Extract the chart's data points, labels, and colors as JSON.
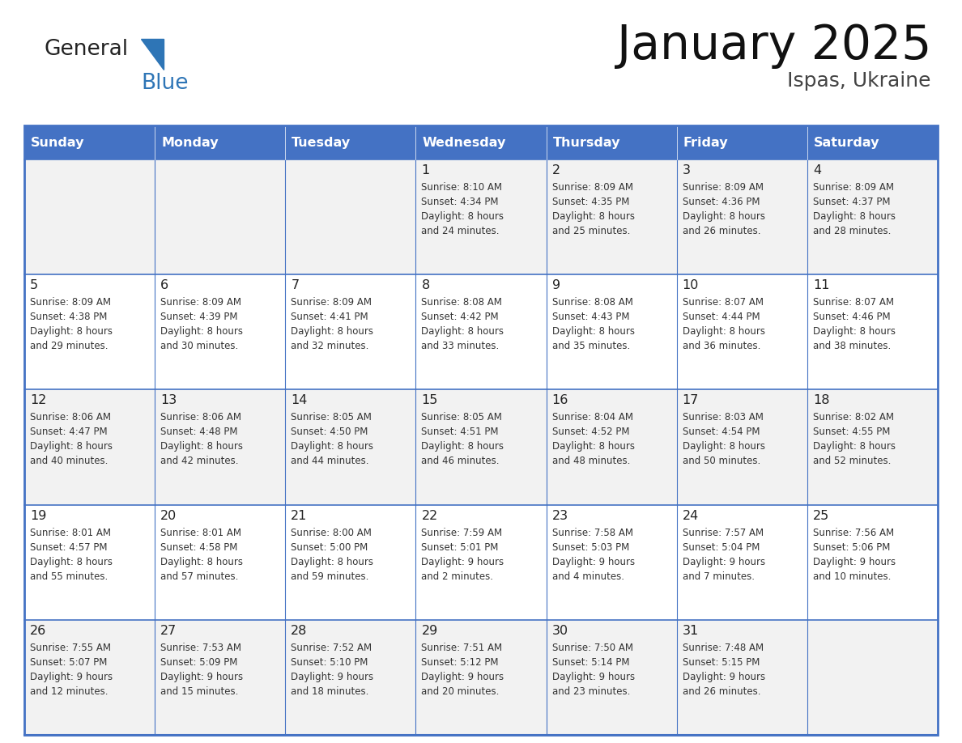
{
  "title": "January 2025",
  "subtitle": "Ispas, Ukraine",
  "header_color": "#4472C4",
  "header_text_color": "#FFFFFF",
  "cell_bg_week1": "#F2F2F2",
  "cell_bg_week2": "#FFFFFF",
  "border_color": "#4472C4",
  "days_of_week": [
    "Sunday",
    "Monday",
    "Tuesday",
    "Wednesday",
    "Thursday",
    "Friday",
    "Saturday"
  ],
  "weeks": [
    [
      {
        "day": "",
        "sunrise": "",
        "sunset": "",
        "daylight": ""
      },
      {
        "day": "",
        "sunrise": "",
        "sunset": "",
        "daylight": ""
      },
      {
        "day": "",
        "sunrise": "",
        "sunset": "",
        "daylight": ""
      },
      {
        "day": "1",
        "sunrise": "8:10 AM",
        "sunset": "4:34 PM",
        "daylight": "8 hours\nand 24 minutes."
      },
      {
        "day": "2",
        "sunrise": "8:09 AM",
        "sunset": "4:35 PM",
        "daylight": "8 hours\nand 25 minutes."
      },
      {
        "day": "3",
        "sunrise": "8:09 AM",
        "sunset": "4:36 PM",
        "daylight": "8 hours\nand 26 minutes."
      },
      {
        "day": "4",
        "sunrise": "8:09 AM",
        "sunset": "4:37 PM",
        "daylight": "8 hours\nand 28 minutes."
      }
    ],
    [
      {
        "day": "5",
        "sunrise": "8:09 AM",
        "sunset": "4:38 PM",
        "daylight": "8 hours\nand 29 minutes."
      },
      {
        "day": "6",
        "sunrise": "8:09 AM",
        "sunset": "4:39 PM",
        "daylight": "8 hours\nand 30 minutes."
      },
      {
        "day": "7",
        "sunrise": "8:09 AM",
        "sunset": "4:41 PM",
        "daylight": "8 hours\nand 32 minutes."
      },
      {
        "day": "8",
        "sunrise": "8:08 AM",
        "sunset": "4:42 PM",
        "daylight": "8 hours\nand 33 minutes."
      },
      {
        "day": "9",
        "sunrise": "8:08 AM",
        "sunset": "4:43 PM",
        "daylight": "8 hours\nand 35 minutes."
      },
      {
        "day": "10",
        "sunrise": "8:07 AM",
        "sunset": "4:44 PM",
        "daylight": "8 hours\nand 36 minutes."
      },
      {
        "day": "11",
        "sunrise": "8:07 AM",
        "sunset": "4:46 PM",
        "daylight": "8 hours\nand 38 minutes."
      }
    ],
    [
      {
        "day": "12",
        "sunrise": "8:06 AM",
        "sunset": "4:47 PM",
        "daylight": "8 hours\nand 40 minutes."
      },
      {
        "day": "13",
        "sunrise": "8:06 AM",
        "sunset": "4:48 PM",
        "daylight": "8 hours\nand 42 minutes."
      },
      {
        "day": "14",
        "sunrise": "8:05 AM",
        "sunset": "4:50 PM",
        "daylight": "8 hours\nand 44 minutes."
      },
      {
        "day": "15",
        "sunrise": "8:05 AM",
        "sunset": "4:51 PM",
        "daylight": "8 hours\nand 46 minutes."
      },
      {
        "day": "16",
        "sunrise": "8:04 AM",
        "sunset": "4:52 PM",
        "daylight": "8 hours\nand 48 minutes."
      },
      {
        "day": "17",
        "sunrise": "8:03 AM",
        "sunset": "4:54 PM",
        "daylight": "8 hours\nand 50 minutes."
      },
      {
        "day": "18",
        "sunrise": "8:02 AM",
        "sunset": "4:55 PM",
        "daylight": "8 hours\nand 52 minutes."
      }
    ],
    [
      {
        "day": "19",
        "sunrise": "8:01 AM",
        "sunset": "4:57 PM",
        "daylight": "8 hours\nand 55 minutes."
      },
      {
        "day": "20",
        "sunrise": "8:01 AM",
        "sunset": "4:58 PM",
        "daylight": "8 hours\nand 57 minutes."
      },
      {
        "day": "21",
        "sunrise": "8:00 AM",
        "sunset": "5:00 PM",
        "daylight": "8 hours\nand 59 minutes."
      },
      {
        "day": "22",
        "sunrise": "7:59 AM",
        "sunset": "5:01 PM",
        "daylight": "9 hours\nand 2 minutes."
      },
      {
        "day": "23",
        "sunrise": "7:58 AM",
        "sunset": "5:03 PM",
        "daylight": "9 hours\nand 4 minutes."
      },
      {
        "day": "24",
        "sunrise": "7:57 AM",
        "sunset": "5:04 PM",
        "daylight": "9 hours\nand 7 minutes."
      },
      {
        "day": "25",
        "sunrise": "7:56 AM",
        "sunset": "5:06 PM",
        "daylight": "9 hours\nand 10 minutes."
      }
    ],
    [
      {
        "day": "26",
        "sunrise": "7:55 AM",
        "sunset": "5:07 PM",
        "daylight": "9 hours\nand 12 minutes."
      },
      {
        "day": "27",
        "sunrise": "7:53 AM",
        "sunset": "5:09 PM",
        "daylight": "9 hours\nand 15 minutes."
      },
      {
        "day": "28",
        "sunrise": "7:52 AM",
        "sunset": "5:10 PM",
        "daylight": "9 hours\nand 18 minutes."
      },
      {
        "day": "29",
        "sunrise": "7:51 AM",
        "sunset": "5:12 PM",
        "daylight": "9 hours\nand 20 minutes."
      },
      {
        "day": "30",
        "sunrise": "7:50 AM",
        "sunset": "5:14 PM",
        "daylight": "9 hours\nand 23 minutes."
      },
      {
        "day": "31",
        "sunrise": "7:48 AM",
        "sunset": "5:15 PM",
        "daylight": "9 hours\nand 26 minutes."
      },
      {
        "day": "",
        "sunrise": "",
        "sunset": "",
        "daylight": ""
      }
    ]
  ],
  "logo_general_color": "#222222",
  "logo_blue_color": "#2E75B6",
  "cell_text_color": "#333333",
  "day_number_color": "#222222",
  "fig_width": 11.88,
  "fig_height": 9.18,
  "dpi": 100
}
